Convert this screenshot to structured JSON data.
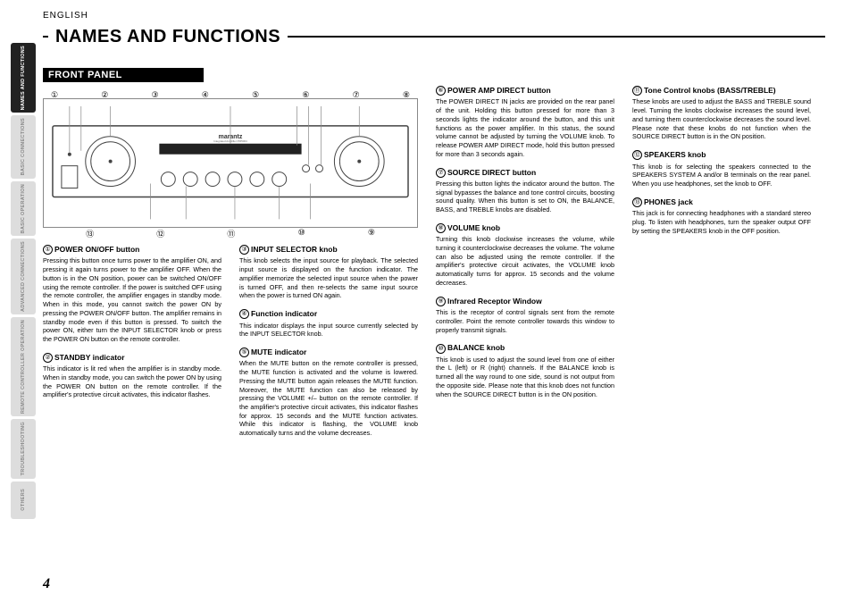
{
  "lang": "ENGLISH",
  "page_number": "4",
  "heading": "NAMES AND FUNCTIONS",
  "subheading": "FRONT PANEL",
  "tabs": [
    {
      "label": "NAMES AND\nFUNCTIONS",
      "active": true
    },
    {
      "label": "BASIC\nCONNECTIONS",
      "active": false
    },
    {
      "label": "BASIC\nOPERATION",
      "active": false
    },
    {
      "label": "ADVANCED\nCONNECTIONS",
      "active": false
    },
    {
      "label": "REMOTE CONTROLLER\nOPERATION",
      "active": false
    },
    {
      "label": "TROUBLESHOOTING",
      "active": false
    },
    {
      "label": "OTHERS",
      "active": false
    }
  ],
  "figure": {
    "top_callouts": [
      "①",
      "②",
      "③",
      "④",
      "⑤",
      "⑥",
      "⑦",
      "⑧"
    ],
    "bottom_callouts": [
      "⑬",
      "⑫",
      "⑪",
      "⑩",
      "⑨"
    ],
    "brand_label": "marantz",
    "model_label": "Integrated Amplifier PM5004"
  },
  "entries": {
    "e1": {
      "num": "①",
      "title": "POWER ON/OFF button",
      "body": "Pressing this button once turns power to the amplifier ON, and pressing it again turns power to the amplifier OFF. When the button is in the ON position, power can be switched ON/OFF using the remote controller.\nIf the power is switched OFF using the remote controller, the amplifier engages in standby mode. When in this mode, you cannot switch the power ON by pressing the POWER ON/OFF button. The amplifier remains in standby mode even if this button is pressed. To switch the power ON, either turn the INPUT SELECTOR knob or press the POWER ON button on the remote controller."
    },
    "e2": {
      "num": "②",
      "title": "STANDBY indicator",
      "body": "This indicator is lit red when the amplifier is in standby mode. When in standby mode, you can switch the power ON by using the POWER ON button on the remote controller. If the amplifier's protective circuit activates, this indicator flashes."
    },
    "e3": {
      "num": "③",
      "title": "INPUT SELECTOR knob",
      "body": "This knob selects the input source for playback. The selected input source is displayed on the function indicator. The amplifier memorize the selected input source when the power is turned OFF, and then re-selects the same input source when the power is turned ON again."
    },
    "e4": {
      "num": "④",
      "title": "Function indicator",
      "body": "This indicator displays the input source currently selected by the INPUT SELECTOR knob."
    },
    "e5": {
      "num": "⑤",
      "title": "MUTE indicator",
      "body": "When the MUTE button on the remote controller is pressed, the MUTE function is activated and the volume is lowered. Pressing the MUTE button again releases the MUTE function. Moreover, the MUTE function can also be released by pressing the VOLUME +/– button on the remote controller. If the amplifier's protective circuit activates, this indicator flashes for approx. 15 seconds and the MUTE function activates. While this indicator is flashing, the VOLUME knob automatically turns and the volume decreases."
    },
    "e6": {
      "num": "⑥",
      "title": "POWER AMP DIRECT button",
      "body": "The POWER DIRECT IN jacks are provided on the rear panel of the unit. Holding this button pressed for more than 3 seconds lights the indicator around the button, and this unit functions as the power amplifier.\nIn this status, the sound volume cannot be adjusted by turning the VOLUME knob.\nTo release POWER AMP DIRECT mode, hold this button pressed for more than 3 seconds again."
    },
    "e7": {
      "num": "⑦",
      "title": "SOURCE DIRECT button",
      "body": "Pressing this button lights the indicator around the button. The signal bypasses the balance and tone control circuits, boosting sound quality. When this button is set to ON, the BALANCE, BASS, and TREBLE knobs are disabled."
    },
    "e8": {
      "num": "⑧",
      "title": "VOLUME knob",
      "body": "Turning this knob clockwise increases the volume, while turning it counterclockwise decreases the volume. The volume can also be adjusted using the remote controller. If the amplifier's protective circuit activates, the VOLUME knob automatically turns for approx. 15 seconds and the volume decreases."
    },
    "e9": {
      "num": "⑨",
      "title": "Infrared Receptor Window",
      "body": "This is the receptor of control signals sent from the remote controller. Point the remote controller towards this window to properly transmit signals."
    },
    "e10": {
      "num": "⑩",
      "title": "BALANCE knob",
      "body": "This knob is used to adjust the sound level from one of either the L (left) or R (right) channels. If the BALANCE knob is turned all the way round to one side, sound is not output from the opposite side.\nPlease note that this knob does not function when the SOURCE DIRECT button is in the ON position."
    },
    "e11": {
      "num": "⑪",
      "title": "Tone Control knobs (BASS/TREBLE)",
      "body": "These knobs are used to adjust the BASS and TREBLE sound level. Turning the knobs clockwise increases the sound level, and turning them counterclockwise decreases the sound level. Please note that these knobs do not function when the SOURCE DIRECT button is in the ON position."
    },
    "e12": {
      "num": "⑫",
      "title": "SPEAKERS knob",
      "body": "This knob is for selecting the speakers connected to the SPEAKERS SYSTEM A and/or B terminals on the rear panel. When you use headphones, set the knob to OFF."
    },
    "e13": {
      "num": "⑬",
      "title": "PHONES jack",
      "body": "This jack is for connecting headphones with a standard stereo plug. To listen with headphones, turn the speaker output OFF by setting the SPEAKERS knob in the OFF position."
    }
  }
}
